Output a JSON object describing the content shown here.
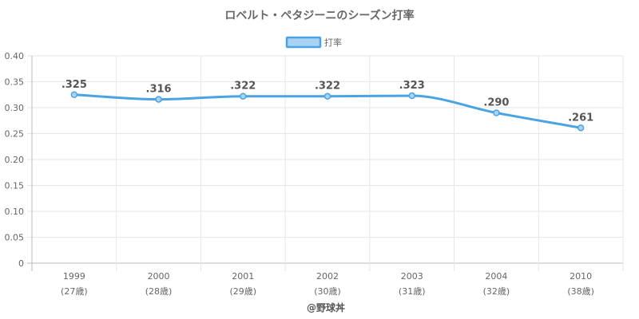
{
  "chart_data": {
    "type": "line",
    "title": "ロベルト・ペタジーニのシーズン打率",
    "categories": [
      "1999",
      "2000",
      "2001",
      "2002",
      "2003",
      "2004",
      "2010"
    ],
    "sublabels": [
      "(27歳)",
      "(28歳)",
      "(29歳)",
      "(30歳)",
      "(31歳)",
      "(32歳)",
      "(38歳)"
    ],
    "series": [
      {
        "name": "打率",
        "values": [
          0.325,
          0.316,
          0.322,
          0.322,
          0.323,
          0.29,
          0.261
        ],
        "labels": [
          ".325",
          ".316",
          ".322",
          ".322",
          ".323",
          ".290",
          ".261"
        ]
      }
    ],
    "ylim": [
      0,
      0.4
    ],
    "yticks": [
      "0",
      "0.05",
      "0.10",
      "0.15",
      "0.20",
      "0.25",
      "0.30",
      "0.35",
      "0.40"
    ],
    "grid": true,
    "legend_position": "top",
    "colors": {
      "line": "#4aa3e2",
      "legend_fill": "#a9d3f3",
      "grid": "#e6e6e6",
      "axis": "#bbbbbb"
    }
  },
  "footer": "@野球丼"
}
